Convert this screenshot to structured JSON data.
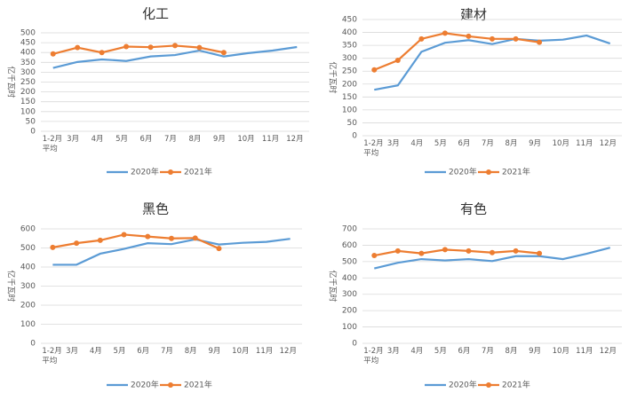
{
  "chart_data": [
    {
      "type": "line",
      "title": "化工",
      "y_label": "亿千瓦时",
      "categories": [
        "1-2月平均",
        "3月",
        "4月",
        "5月",
        "6月",
        "7月",
        "8月",
        "9月",
        "10月",
        "11月",
        "12月"
      ],
      "series": [
        {
          "name": "2020年",
          "color": "#5b9bd5",
          "values": [
            322,
            352,
            365,
            357,
            380,
            387,
            410,
            380,
            397,
            410,
            428
          ]
        },
        {
          "name": "2021年",
          "color": "#ed7d31",
          "values": [
            393,
            425,
            400,
            430,
            427,
            435,
            425,
            400,
            null,
            null,
            null
          ]
        }
      ],
      "ylim": [
        0,
        500
      ],
      "yticks": [
        0,
        50,
        100,
        150,
        200,
        250,
        300,
        350,
        400,
        450,
        500
      ],
      "legend": "bottom"
    },
    {
      "type": "line",
      "title": "建材",
      "y_label": "亿千瓦时",
      "categories": [
        "1-2月平均",
        "3月",
        "4月",
        "5月",
        "6月",
        "7月",
        "8月",
        "9月",
        "10月",
        "11月",
        "12月"
      ],
      "series": [
        {
          "name": "2020年",
          "color": "#5b9bd5",
          "values": [
            178,
            195,
            325,
            360,
            370,
            355,
            375,
            368,
            372,
            388,
            357
          ]
        },
        {
          "name": "2021年",
          "color": "#ed7d31",
          "values": [
            255,
            292,
            375,
            397,
            385,
            375,
            375,
            362,
            null,
            null,
            null
          ]
        }
      ],
      "ylim": [
        0,
        450
      ],
      "yticks": [
        0,
        50,
        100,
        150,
        200,
        250,
        300,
        350,
        400,
        450
      ],
      "legend": "bottom"
    },
    {
      "type": "line",
      "title": "黑色",
      "y_label": "亿千瓦时",
      "categories": [
        "1-2月平均",
        "3月",
        "4月",
        "5月",
        "6月",
        "7月",
        "8月",
        "9月",
        "10月",
        "11月",
        "12月"
      ],
      "series": [
        {
          "name": "2020年",
          "color": "#5b9bd5",
          "values": [
            412,
            412,
            470,
            495,
            525,
            520,
            545,
            518,
            527,
            532,
            548
          ]
        },
        {
          "name": "2021年",
          "color": "#ed7d31",
          "values": [
            503,
            525,
            540,
            570,
            560,
            550,
            552,
            497,
            null,
            null,
            null
          ]
        }
      ],
      "ylim": [
        0,
        600
      ],
      "yticks": [
        0,
        100,
        200,
        300,
        400,
        500,
        600
      ],
      "legend": "bottom"
    },
    {
      "type": "line",
      "title": "有色",
      "y_label": "亿千瓦时",
      "categories": [
        "1-2月平均",
        "3月",
        "4月",
        "5月",
        "6月",
        "7月",
        "8月",
        "9月",
        "10月",
        "11月",
        "12月"
      ],
      "series": [
        {
          "name": "2020年",
          "color": "#5b9bd5",
          "values": [
            458,
            493,
            515,
            507,
            515,
            503,
            533,
            533,
            515,
            548,
            585
          ]
        },
        {
          "name": "2021年",
          "color": "#ed7d31",
          "values": [
            537,
            565,
            550,
            573,
            565,
            555,
            565,
            550,
            null,
            null,
            null
          ]
        }
      ],
      "ylim": [
        0,
        700
      ],
      "yticks": [
        0,
        100,
        200,
        300,
        400,
        500,
        600,
        700
      ],
      "legend": "bottom"
    }
  ]
}
